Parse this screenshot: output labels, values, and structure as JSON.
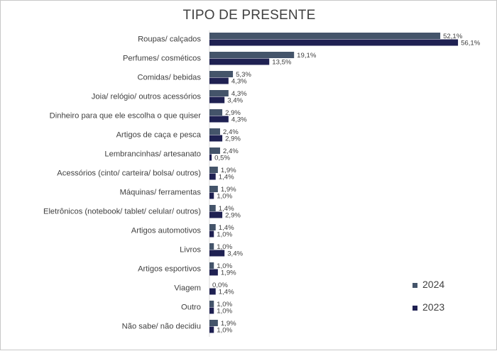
{
  "chart_data": {
    "type": "bar",
    "orientation": "horizontal",
    "title": "TIPO DE PRESENTE",
    "xlabel": "",
    "ylabel": "",
    "grid": false,
    "legend_position": "bottom-right",
    "categories": [
      "Roupas/ calçados",
      "Perfumes/ cosméticos",
      "Comidas/ bebidas",
      "Joia/ relógio/ outros acessórios",
      "Dinheiro para que ele escolha o que quiser",
      "Artigos de caça e pesca",
      "Lembrancinhas/ artesanato",
      "Acessórios (cinto/ carteira/ bolsa/ outros)",
      "Máquinas/ ferramentas",
      "Eletrônicos (notebook/ tablet/ celular/ outros)",
      "Artigos automotivos",
      "Livros",
      "Artigos esportivos",
      "Viagem",
      "Outro",
      "Não sabe/ não decidiu"
    ],
    "series": [
      {
        "name": "2024",
        "color": "#44546a",
        "values": [
          52.1,
          19.1,
          5.3,
          4.3,
          2.9,
          2.4,
          2.4,
          1.9,
          1.9,
          1.4,
          1.4,
          1.0,
          1.0,
          0.0,
          1.0,
          1.9
        ],
        "labels": [
          "52,1%",
          "19,1%",
          "5,3%",
          "4,3%",
          "2,9%",
          "2,4%",
          "2,4%",
          "1,9%",
          "1,9%",
          "1,4%",
          "1,4%",
          "1,0%",
          "1,0%",
          "0,0%",
          "1,0%",
          "1,9%"
        ]
      },
      {
        "name": "2023",
        "color": "#1f2152",
        "values": [
          56.1,
          13.5,
          4.3,
          3.4,
          4.3,
          2.9,
          0.5,
          1.4,
          1.0,
          2.9,
          1.0,
          3.4,
          1.9,
          1.4,
          1.0,
          1.0
        ],
        "labels": [
          "56,1%",
          "13,5%",
          "4,3%",
          "3,4%",
          "4,3%",
          "2,9%",
          "0,5%",
          "1,4%",
          "1,0%",
          "2,9%",
          "1,0%",
          "3,4%",
          "1,9%",
          "1,4%",
          "1,0%",
          "1,0%"
        ]
      }
    ]
  }
}
